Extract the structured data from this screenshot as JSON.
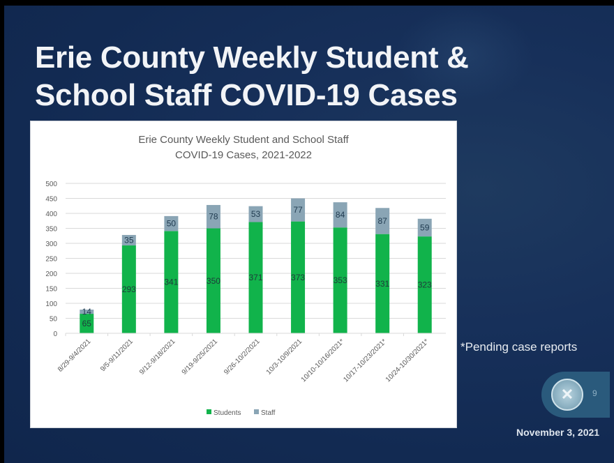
{
  "slide": {
    "title": "Erie County Weekly Student & School Staff COVID-19 Cases",
    "title_line1": "Erie County Weekly Student &",
    "title_line2": "School Staff COVID-19 Cases",
    "footnote": "*Pending case reports",
    "page_number": "9",
    "date": "November 3, 2021",
    "colors": {
      "background": "#122a52",
      "students": "#11b34b",
      "staff": "#8aa5b5"
    }
  },
  "chart_data": {
    "type": "bar",
    "stacked": true,
    "title": "Erie County Weekly Student and School Staff COVID-19 Cases, 2021-2022",
    "title_line1": "Erie County Weekly Student and School Staff",
    "title_line2": "COVID-19 Cases, 2021-2022",
    "xlabel": "",
    "ylabel": "",
    "ylim": [
      0,
      500
    ],
    "yticks": [
      0,
      50,
      100,
      150,
      200,
      250,
      300,
      350,
      400,
      450,
      500
    ],
    "grid": true,
    "legend_position": "bottom",
    "categories": [
      "8/29-9/4/2021",
      "9/5-9/11/2021",
      "9/12-9/18/2021",
      "9/19-9/25/2021",
      "9/26-10/2/2021",
      "10/3-10/9/2021",
      "10/10-10/16/2021*",
      "10/17-10/23/2021*",
      "10/24-10/30/2021*"
    ],
    "series": [
      {
        "name": "Students",
        "color": "#11b34b",
        "values": [
          65,
          293,
          341,
          350,
          371,
          373,
          353,
          331,
          323
        ]
      },
      {
        "name": "Staff",
        "color": "#8aa5b5",
        "values": [
          14,
          35,
          50,
          78,
          53,
          77,
          84,
          87,
          59
        ]
      }
    ]
  }
}
